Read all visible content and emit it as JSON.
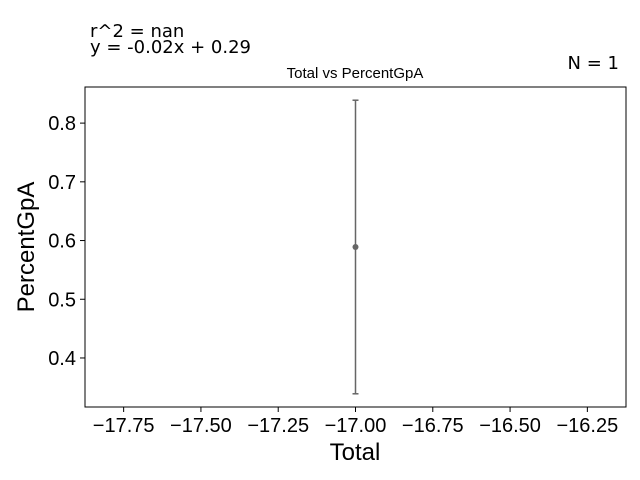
{
  "chart_data": {
    "type": "scatter",
    "title": "Total vs PercentGpA",
    "xlabel": "Total",
    "ylabel": "PercentGpA",
    "annotations": {
      "r2": "r^2 = nan",
      "equation": "y = -0.02x + 0.29",
      "n": "N = 1"
    },
    "xlim": [
      -17.875,
      -16.125
    ],
    "ylim": [
      0.3165,
      0.8615
    ],
    "xticks": [
      -17.75,
      -17.5,
      -17.25,
      -17.0,
      -16.75,
      -16.5,
      -16.25
    ],
    "xtick_labels": [
      "−17.75",
      "−17.50",
      "−17.25",
      "−17.00",
      "−16.75",
      "−16.50",
      "−16.25"
    ],
    "yticks": [
      0.4,
      0.5,
      0.6,
      0.7,
      0.8
    ],
    "ytick_labels": [
      "0.4",
      "0.5",
      "0.6",
      "0.7",
      "0.8"
    ],
    "points": [
      {
        "x": -17.0,
        "y": 0.589,
        "err_low": 0.339,
        "err_high": 0.839
      }
    ],
    "grid": false,
    "colors": {
      "marker": "#666666",
      "axes": "#000000"
    }
  }
}
